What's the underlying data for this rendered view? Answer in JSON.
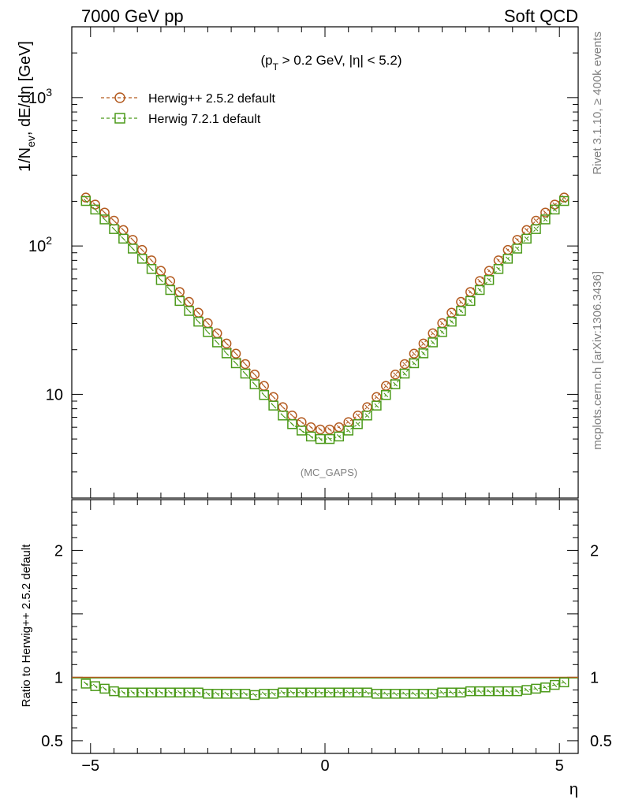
{
  "header": {
    "left": "7000 GeV pp",
    "right": "Soft QCD"
  },
  "side_text": {
    "rivet": "Rivet 3.1.10, ≥ 400k events",
    "mcplots": "mcplots.cern.ch [arXiv:1306.3436]"
  },
  "chart_data": [
    {
      "type": "scatter",
      "panel": "main",
      "cut_label": "(p_T > 0.2 GeV, |η| < 5.2)",
      "analysis": "(MC_GAPS)",
      "ylabel": "1/N_ev, dE/dη [GeV]",
      "xlim": [
        -5.4,
        5.4
      ],
      "ylim": [
        2,
        3000
      ],
      "yscale": "log",
      "y_tick_labels": [
        "10",
        "10^2",
        "10^3"
      ],
      "legend_placement": "top-left",
      "x": [
        -5.1,
        -4.9,
        -4.7,
        -4.5,
        -4.3,
        -4.1,
        -3.9,
        -3.7,
        -3.5,
        -3.3,
        -3.1,
        -2.9,
        -2.7,
        -2.5,
        -2.3,
        -2.1,
        -1.9,
        -1.7,
        -1.5,
        -1.3,
        -1.1,
        -0.9,
        -0.7,
        -0.5,
        -0.3,
        -0.1,
        0.1,
        0.3,
        0.5,
        0.7,
        0.9,
        1.1,
        1.3,
        1.5,
        1.7,
        1.9,
        2.1,
        2.3,
        2.5,
        2.7,
        2.9,
        3.1,
        3.3,
        3.5,
        3.7,
        3.9,
        4.1,
        4.3,
        4.5,
        4.7,
        4.9,
        5.1
      ],
      "series": [
        {
          "name": "Herwig++ 2.5.2 default",
          "color": "#b35a1f",
          "marker": "circle",
          "values": [
            212,
            190,
            168,
            148,
            128,
            110,
            94,
            80,
            68,
            58,
            49,
            42,
            35.5,
            30.2,
            25.8,
            22.0,
            18.8,
            16.0,
            13.6,
            11.4,
            9.6,
            8.2,
            7.2,
            6.5,
            6.0,
            5.8,
            5.8,
            6.0,
            6.5,
            7.2,
            8.2,
            9.6,
            11.4,
            13.6,
            16.0,
            18.8,
            22.0,
            25.8,
            30.2,
            35.5,
            42,
            49,
            58,
            68,
            80,
            94,
            110,
            128,
            148,
            168,
            190,
            212
          ]
        },
        {
          "name": "Herwig 7.2.1 default",
          "color": "#4c9a1a",
          "marker": "square",
          "values": [
            201,
            176,
            151,
            130,
            112,
            96,
            82,
            70,
            59,
            50.5,
            42.6,
            36.5,
            30.9,
            26.3,
            22.4,
            18.9,
            16.2,
            13.8,
            11.7,
            9.9,
            8.4,
            7.2,
            6.3,
            5.7,
            5.2,
            5.0,
            5.0,
            5.2,
            5.7,
            6.3,
            7.2,
            8.4,
            9.9,
            11.7,
            13.8,
            16.2,
            18.9,
            22.4,
            26.3,
            30.9,
            36.5,
            42.6,
            50.5,
            59,
            70,
            82,
            96,
            112,
            130,
            151,
            176,
            201
          ]
        }
      ]
    },
    {
      "type": "scatter",
      "panel": "ratio",
      "ylabel": "Ratio to Herwig++ 2.5.2 default",
      "xlabel": "η",
      "xlim": [
        -5.4,
        5.4
      ],
      "ylim": [
        0.4,
        2.4
      ],
      "x_tick_labels": [
        "−5",
        "0",
        "5"
      ],
      "y_tick_labels": [
        "0.5",
        "1",
        "2"
      ],
      "reference": 1.0,
      "series": [
        {
          "name": "Herwig 7.2.1 default",
          "color": "#4c9a1a",
          "marker": "square",
          "values": [
            0.95,
            0.93,
            0.91,
            0.89,
            0.88,
            0.88,
            0.88,
            0.88,
            0.88,
            0.88,
            0.88,
            0.88,
            0.88,
            0.87,
            0.87,
            0.87,
            0.87,
            0.87,
            0.86,
            0.87,
            0.87,
            0.88,
            0.88,
            0.88,
            0.88,
            0.88,
            0.88,
            0.88,
            0.88,
            0.88,
            0.88,
            0.87,
            0.87,
            0.87,
            0.87,
            0.87,
            0.87,
            0.87,
            0.88,
            0.88,
            0.88,
            0.89,
            0.89,
            0.89,
            0.89,
            0.89,
            0.89,
            0.9,
            0.91,
            0.92,
            0.94,
            0.96
          ]
        }
      ]
    }
  ]
}
